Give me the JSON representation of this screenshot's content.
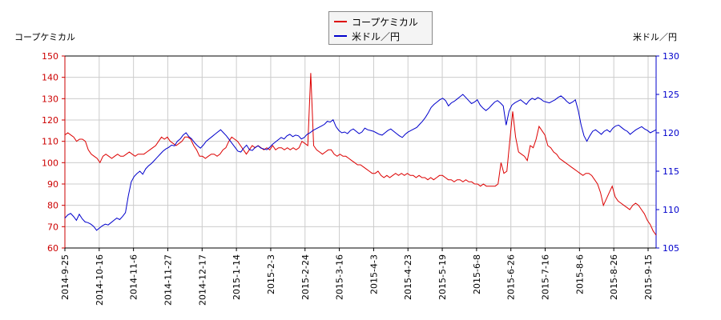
{
  "chart_data": {
    "type": "line",
    "left_axis_title": "コープケミカル",
    "right_axis_title": "米ドル／円",
    "legend_position": "top-center",
    "grid": true,
    "x_ticks": [
      "2014-9-25",
      "2014-10-16",
      "2014-11-6",
      "2014-11-27",
      "2014-12-17",
      "2015-1-14",
      "2015-2-3",
      "2015-2-24",
      "2015-3-16",
      "2015-4-3",
      "2015-4-23",
      "2015-5-19",
      "2015-6-8",
      "2015-6-26",
      "2015-7-16",
      "2015-8-6",
      "2015-8-26",
      "2015-9-15"
    ],
    "y_left": {
      "ticks": [
        60,
        70,
        80,
        90,
        100,
        110,
        120,
        130,
        140,
        150
      ],
      "range": [
        60,
        150
      ]
    },
    "y_right": {
      "ticks": [
        105,
        110,
        115,
        120,
        125,
        130
      ],
      "range": [
        105,
        130
      ]
    },
    "series": [
      {
        "name": "コープケミカル",
        "color": "#dd0000",
        "axis": "left",
        "values": [
          113,
          114,
          113,
          112,
          110,
          111,
          111,
          110,
          106,
          104,
          103,
          102,
          100,
          103,
          104,
          103,
          102,
          103,
          104,
          103,
          103,
          104,
          105,
          104,
          103,
          104,
          104,
          104,
          105,
          106,
          107,
          108,
          110,
          112,
          111,
          112,
          110,
          109,
          108,
          109,
          110,
          112,
          112,
          111,
          108,
          106,
          103,
          103,
          102,
          103,
          104,
          104,
          103,
          104,
          106,
          107,
          110,
          112,
          111,
          110,
          108,
          106,
          104,
          106,
          108,
          107,
          108,
          107,
          106,
          107,
          106,
          108,
          106,
          107,
          107,
          106,
          107,
          106,
          107,
          106,
          107,
          110,
          109,
          108,
          142,
          108,
          106,
          105,
          104,
          105,
          106,
          106,
          104,
          103,
          104,
          103,
          103,
          102,
          101,
          100,
          99,
          99,
          98,
          97,
          96,
          95,
          95,
          96,
          94,
          93,
          94,
          93,
          94,
          95,
          94,
          95,
          94,
          95,
          94,
          94,
          93,
          94,
          93,
          93,
          92,
          93,
          92,
          93,
          94,
          94,
          93,
          92,
          92,
          91,
          92,
          92,
          91,
          92,
          91,
          91,
          90,
          90,
          89,
          90,
          89,
          89,
          89,
          89,
          90,
          100,
          95,
          96,
          110,
          124,
          112,
          105,
          104,
          103,
          101,
          108,
          107,
          111,
          117,
          115,
          113,
          108,
          107,
          105,
          104,
          102,
          101,
          100,
          99,
          98,
          97,
          96,
          95,
          94,
          95,
          95,
          94,
          92,
          90,
          86,
          80,
          83,
          86,
          89,
          84,
          82,
          81,
          80,
          79,
          78,
          80,
          81,
          80,
          78,
          76,
          73,
          71,
          68,
          66
        ]
      },
      {
        "name": "米ドル／円",
        "color": "#0000cc",
        "axis": "right",
        "values": [
          108.9,
          109.3,
          109.5,
          109.1,
          108.6,
          109.4,
          108.8,
          108.4,
          108.3,
          108.1,
          107.8,
          107.3,
          107.6,
          107.9,
          108.1,
          108.0,
          108.3,
          108.6,
          108.9,
          108.7,
          109.1,
          109.6,
          111.8,
          113.6,
          114.3,
          114.7,
          115.0,
          114.6,
          115.3,
          115.7,
          116.0,
          116.4,
          116.8,
          117.2,
          117.6,
          117.9,
          118.1,
          118.4,
          118.3,
          118.9,
          119.2,
          119.7,
          120.0,
          119.5,
          119.2,
          118.7,
          118.3,
          118.0,
          118.4,
          118.9,
          119.2,
          119.5,
          119.8,
          120.1,
          120.4,
          120.0,
          119.6,
          119.1,
          118.6,
          118.1,
          117.6,
          117.5,
          118.0,
          118.4,
          117.8,
          117.7,
          118.1,
          118.3,
          118.0,
          117.9,
          117.8,
          118.1,
          118.5,
          118.8,
          119.1,
          119.4,
          119.2,
          119.6,
          119.8,
          119.5,
          119.7,
          119.6,
          119.2,
          119.4,
          119.8,
          120.0,
          120.3,
          120.5,
          120.7,
          120.9,
          121.1,
          121.5,
          121.4,
          121.7,
          120.8,
          120.3,
          120.0,
          120.1,
          119.9,
          120.3,
          120.5,
          120.2,
          119.9,
          120.1,
          120.6,
          120.4,
          120.3,
          120.2,
          120.0,
          119.8,
          119.7,
          120.0,
          120.3,
          120.5,
          120.2,
          119.9,
          119.6,
          119.4,
          119.8,
          120.1,
          120.3,
          120.5,
          120.7,
          121.1,
          121.5,
          122.0,
          122.6,
          123.3,
          123.7,
          124.0,
          124.3,
          124.5,
          124.2,
          123.5,
          123.9,
          124.1,
          124.4,
          124.7,
          125.0,
          124.6,
          124.2,
          123.8,
          124.0,
          124.3,
          123.6,
          123.2,
          122.9,
          123.2,
          123.6,
          124.0,
          124.2,
          123.9,
          123.5,
          121.0,
          122.8,
          123.6,
          123.9,
          124.1,
          124.3,
          124.0,
          123.7,
          124.2,
          124.5,
          124.3,
          124.6,
          124.4,
          124.1,
          124.0,
          123.9,
          124.1,
          124.3,
          124.6,
          124.8,
          124.5,
          124.1,
          123.8,
          124.0,
          124.3,
          122.9,
          121.0,
          119.6,
          118.9,
          119.6,
          120.2,
          120.4,
          120.1,
          119.8,
          120.2,
          120.4,
          120.1,
          120.6,
          120.9,
          121.0,
          120.7,
          120.4,
          120.2,
          119.8,
          120.1,
          120.4,
          120.6,
          120.8,
          120.5,
          120.3,
          120.0,
          120.2,
          120.4
        ]
      }
    ]
  }
}
